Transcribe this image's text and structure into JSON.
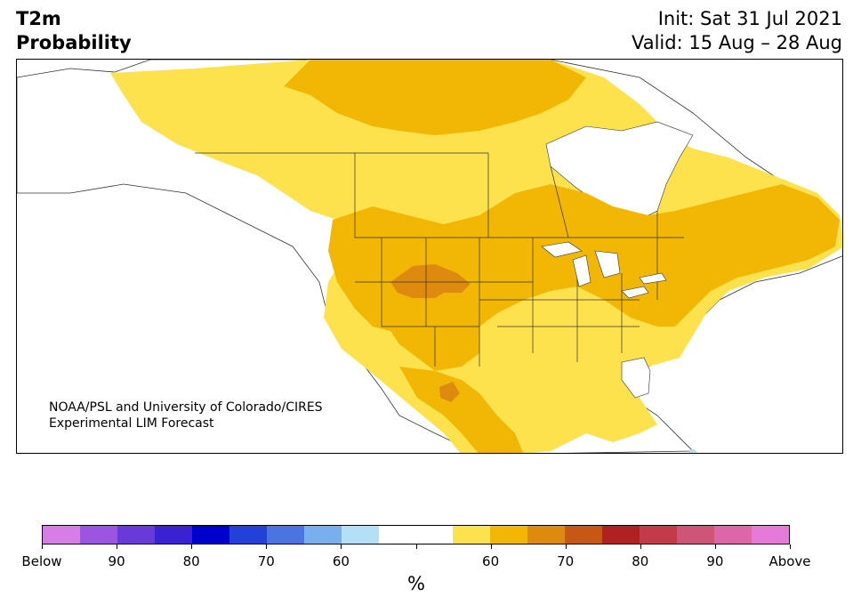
{
  "header": {
    "title_line1": "T2m",
    "title_line2": "Probability",
    "init": "Init: Sat 31 Jul 2021",
    "valid": "Valid: 15 Aug – 28 Aug"
  },
  "credit": {
    "line1": "NOAA/PSL and University of Colorado/CIRES",
    "line2": "Experimental LIM Forecast"
  },
  "colorbar": {
    "colors": [
      "#d77de6",
      "#9b55e0",
      "#6a3ad9",
      "#3a21d2",
      "#0000cc",
      "#2340d8",
      "#4b73e1",
      "#78b0ee",
      "#b3dff7",
      "#ffffff",
      "#ffffff",
      "#fde24e",
      "#f2b705",
      "#dd8a0e",
      "#c65715",
      "#b02121",
      "#c33a4a",
      "#cf5578",
      "#dc66a8",
      "#e67ad9"
    ],
    "labels": [
      "Below",
      "90",
      "80",
      "70",
      "60",
      "",
      "60",
      "70",
      "80",
      "90",
      "Above"
    ],
    "unit": "%"
  },
  "map": {
    "levels": {
      "above_55": "#fde24e",
      "above_60": "#f2b705",
      "above_70": "#dd8a0e",
      "below_60": "#b3dff7"
    },
    "land_color": "#ffffff",
    "border_color": "#333333"
  }
}
